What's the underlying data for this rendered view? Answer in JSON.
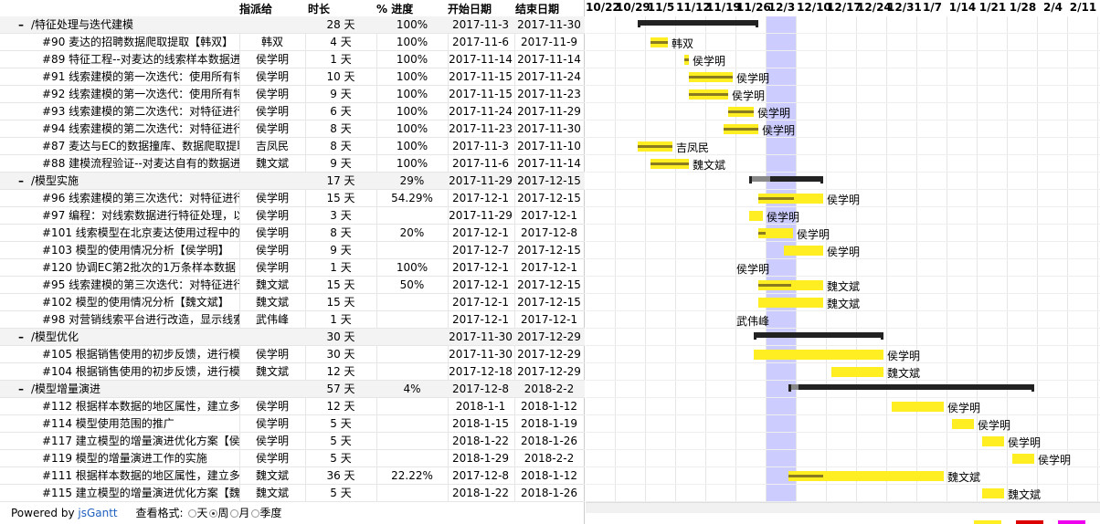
{
  "headers": {
    "resource": "指派给",
    "duration": "时长",
    "percent": "% 进度",
    "start": "开始日期",
    "end": "结束日期"
  },
  "weeks": [
    "10/22",
    "10/29",
    "11/5",
    "11/12",
    "11/19",
    "11/26",
    "12/3",
    "12/10",
    "12/17",
    "12/24",
    "12/31",
    "1/7",
    "1/14",
    "1/21",
    "1/28",
    "2/4",
    "2/11"
  ],
  "today_week": "12/3",
  "rows": [
    {
      "type": "group",
      "toggle": "–",
      "name": "/特征处理与迭代建模",
      "res": "",
      "dur": "28 天",
      "pct": "100%",
      "start": "2017-11-3",
      "end": "2017-11-30",
      "bar_start": "2017-11-3",
      "bar_end": "2017-11-30",
      "progress": 100
    },
    {
      "type": "task",
      "name": "#90 麦达的招聘数据爬取提取【韩双】",
      "res": "韩双",
      "dur": "4 天",
      "pct": "100%",
      "start": "2017-11-6",
      "end": "2017-11-9",
      "bar_start": "2017-11-6",
      "bar_end": "2017-11-9",
      "progress": 100,
      "label": "韩双"
    },
    {
      "type": "task",
      "name": "#89 特征工程--对麦达的线索样本数据进行特征处理",
      "res": "侯学明",
      "dur": "1 天",
      "pct": "100%",
      "start": "2017-11-14",
      "end": "2017-11-14",
      "bar_start": "2017-11-14",
      "bar_end": "2017-11-14",
      "progress": 100,
      "label": "侯学明"
    },
    {
      "type": "task",
      "name": "#91 线索建模的第一次迭代：使用所有特征",
      "res": "侯学明",
      "dur": "10 天",
      "pct": "100%",
      "start": "2017-11-15",
      "end": "2017-11-24",
      "bar_start": "2017-11-15",
      "bar_end": "2017-11-24",
      "progress": 100,
      "label": "侯学明"
    },
    {
      "type": "task",
      "name": "#92 线索建模的第一次迭代：使用所有特征",
      "res": "侯学明",
      "dur": "9 天",
      "pct": "100%",
      "start": "2017-11-15",
      "end": "2017-11-23",
      "bar_start": "2017-11-15",
      "bar_end": "2017-11-23",
      "progress": 100,
      "label": "侯学明"
    },
    {
      "type": "task",
      "name": "#93 线索建模的第二次迭代：对特征进行筛选",
      "res": "侯学明",
      "dur": "6 天",
      "pct": "100%",
      "start": "2017-11-24",
      "end": "2017-11-29",
      "bar_start": "2017-11-24",
      "bar_end": "2017-11-29",
      "progress": 100,
      "label": "侯学明"
    },
    {
      "type": "task",
      "name": "#94 线索建模的第二次迭代：对特征进行筛选",
      "res": "侯学明",
      "dur": "8 天",
      "pct": "100%",
      "start": "2017-11-23",
      "end": "2017-11-30",
      "bar_start": "2017-11-23",
      "bar_end": "2017-11-30",
      "progress": 100,
      "label": "侯学明"
    },
    {
      "type": "task",
      "name": "#87 麦达与EC的数据撞库、数据爬取提取",
      "res": "吉凤民",
      "dur": "8 天",
      "pct": "100%",
      "start": "2017-11-3",
      "end": "2017-11-10",
      "bar_start": "2017-11-3",
      "bar_end": "2017-11-10",
      "progress": 100,
      "label": "吉凤民"
    },
    {
      "type": "task",
      "name": "#88 建模流程验证--对麦达自有的数据进行建模",
      "res": "魏文斌",
      "dur": "9 天",
      "pct": "100%",
      "start": "2017-11-6",
      "end": "2017-11-14",
      "bar_start": "2017-11-6",
      "bar_end": "2017-11-14",
      "progress": 100,
      "label": "魏文斌"
    },
    {
      "type": "group",
      "toggle": "–",
      "name": "/模型实施",
      "res": "",
      "dur": "17 天",
      "pct": "29%",
      "start": "2017-11-29",
      "end": "2017-12-15",
      "bar_start": "2017-11-29",
      "bar_end": "2017-12-15",
      "progress": 29
    },
    {
      "type": "task",
      "name": "#96 线索建模的第三次迭代：对特征进行优化",
      "res": "侯学明",
      "dur": "15 天",
      "pct": "54.29%",
      "start": "2017-12-1",
      "end": "2017-12-15",
      "bar_start": "2017-12-1",
      "bar_end": "2017-12-15",
      "progress": 54.29,
      "label": "侯学明"
    },
    {
      "type": "task",
      "name": "#97 编程：对线索数据进行特征处理，以便应用",
      "res": "侯学明",
      "dur": "3 天",
      "pct": "",
      "start": "2017-11-29",
      "end": "2017-12-1",
      "bar_start": "2017-11-29",
      "bar_end": "2017-12-1",
      "progress": 0,
      "label": "侯学明"
    },
    {
      "type": "task",
      "name": "#101 线索模型在北京麦达使用过程中的问题",
      "res": "侯学明",
      "dur": "8 天",
      "pct": "20%",
      "start": "2017-12-1",
      "end": "2017-12-8",
      "bar_start": "2017-12-1",
      "bar_end": "2017-12-8",
      "progress": 20,
      "label": "侯学明"
    },
    {
      "type": "task",
      "name": "#103 模型的使用情况分析【侯学明】",
      "res": "侯学明",
      "dur": "9 天",
      "pct": "",
      "start": "2017-12-7",
      "end": "2017-12-15",
      "bar_start": "2017-12-7",
      "bar_end": "2017-12-15",
      "progress": 0,
      "label": "侯学明"
    },
    {
      "type": "task",
      "name": "#120 协调EC第2批次的1万条样本数据",
      "res": "侯学明",
      "dur": "1 天",
      "pct": "100%",
      "start": "2017-12-1",
      "end": "2017-12-1",
      "bar_start": "",
      "bar_end": "",
      "progress": 100,
      "label": "侯学明"
    },
    {
      "type": "task",
      "name": "#95 线索建模的第三次迭代：对特征进行优化",
      "res": "魏文斌",
      "dur": "15 天",
      "pct": "50%",
      "start": "2017-12-1",
      "end": "2017-12-15",
      "bar_start": "2017-12-1",
      "bar_end": "2017-12-15",
      "progress": 50,
      "label": "魏文斌"
    },
    {
      "type": "task",
      "name": "#102 模型的使用情况分析【魏文斌】",
      "res": "魏文斌",
      "dur": "15 天",
      "pct": "",
      "start": "2017-12-1",
      "end": "2017-12-15",
      "bar_start": "2017-12-1",
      "bar_end": "2017-12-15",
      "progress": 0,
      "label": "魏文斌"
    },
    {
      "type": "task",
      "name": "#98 对营销线索平台进行改造，显示线索评分",
      "res": "武伟峰",
      "dur": "1 天",
      "pct": "",
      "start": "2017-12-1",
      "end": "2017-12-1",
      "bar_start": "",
      "bar_end": "",
      "progress": 0,
      "label": "武伟峰"
    },
    {
      "type": "group",
      "toggle": "–",
      "name": "/模型优化",
      "res": "",
      "dur": "30 天",
      "pct": "",
      "start": "2017-11-30",
      "end": "2017-12-29",
      "bar_start": "2017-11-30",
      "bar_end": "2017-12-29",
      "progress": 0
    },
    {
      "type": "task",
      "name": "#105 根据销售使用的初步反馈，进行模型优化",
      "res": "侯学明",
      "dur": "30 天",
      "pct": "",
      "start": "2017-11-30",
      "end": "2017-12-29",
      "bar_start": "2017-11-30",
      "bar_end": "2017-12-29",
      "progress": 0,
      "label": "侯学明"
    },
    {
      "type": "task",
      "name": "#104 根据销售使用的初步反馈，进行模型优化",
      "res": "魏文斌",
      "dur": "12 天",
      "pct": "",
      "start": "2017-12-18",
      "end": "2017-12-29",
      "bar_start": "2017-12-18",
      "bar_end": "2017-12-29",
      "progress": 0,
      "label": "魏文斌"
    },
    {
      "type": "group",
      "toggle": "–",
      "name": "/模型增量演进",
      "res": "",
      "dur": "57 天",
      "pct": "4%",
      "start": "2017-12-8",
      "end": "2018-2-2",
      "bar_start": "2017-12-8",
      "bar_end": "2018-2-2",
      "progress": 4
    },
    {
      "type": "task",
      "name": "#112 根据样本数据的地区属性，建立多地区模型",
      "res": "侯学明",
      "dur": "12 天",
      "pct": "",
      "start": "2018-1-1",
      "end": "2018-1-12",
      "bar_start": "2018-1-1",
      "bar_end": "2018-1-12",
      "progress": 0,
      "label": "侯学明"
    },
    {
      "type": "task",
      "name": "#114 模型使用范围的推广",
      "res": "侯学明",
      "dur": "5 天",
      "pct": "",
      "start": "2018-1-15",
      "end": "2018-1-19",
      "bar_start": "2018-1-15",
      "bar_end": "2018-1-19",
      "progress": 0,
      "label": "侯学明"
    },
    {
      "type": "task",
      "name": "#117 建立模型的增量演进优化方案【侯学明】",
      "res": "侯学明",
      "dur": "5 天",
      "pct": "",
      "start": "2018-1-22",
      "end": "2018-1-26",
      "bar_start": "2018-1-22",
      "bar_end": "2018-1-26",
      "progress": 0,
      "label": "侯学明"
    },
    {
      "type": "task",
      "name": "#119 模型的增量演进工作的实施",
      "res": "侯学明",
      "dur": "5 天",
      "pct": "",
      "start": "2018-1-29",
      "end": "2018-2-2",
      "bar_start": "2018-1-29",
      "bar_end": "2018-2-2",
      "progress": 0,
      "label": "侯学明"
    },
    {
      "type": "task",
      "name": "#111 根据样本数据的地区属性，建立多地区模型",
      "res": "魏文斌",
      "dur": "36 天",
      "pct": "22.22%",
      "start": "2017-12-8",
      "end": "2018-1-12",
      "bar_start": "2017-12-8",
      "bar_end": "2018-1-12",
      "progress": 22.22,
      "label": "魏文斌"
    },
    {
      "type": "task",
      "name": "#115 建立模型的增量演进优化方案【魏文斌】",
      "res": "魏文斌",
      "dur": "5 天",
      "pct": "",
      "start": "2018-1-22",
      "end": "2018-1-26",
      "bar_start": "2018-1-22",
      "bar_end": "2018-1-26",
      "progress": 0,
      "label": "魏文斌"
    }
  ],
  "footer": {
    "powered": "Powered by ",
    "link": "jsGantt",
    "format_label": "查看格式:",
    "formats": [
      "天",
      "周",
      "月",
      "季度"
    ],
    "selected_format": "周"
  },
  "colors": {
    "task_bar": "#ffee22",
    "today": "#ccccff",
    "legend": [
      "#ffee22",
      "#dd0000",
      "#ee00ee"
    ]
  }
}
